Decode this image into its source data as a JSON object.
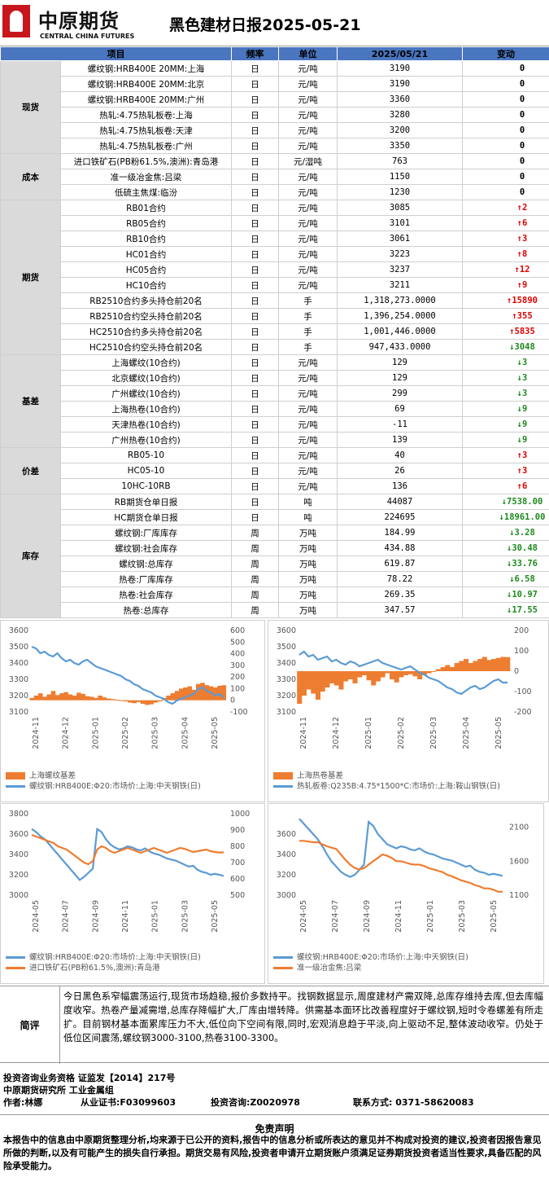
{
  "header": {
    "logo_cn": "中原期货",
    "logo_en": "CENTRAL CHINA FUTURES",
    "title": "黑色建材日报2025-05-21"
  },
  "table": {
    "headers": [
      "项目",
      "频率",
      "单位",
      "2025/05/21",
      "变动"
    ],
    "groups": [
      {
        "category": "现货",
        "rows": [
          {
            "item": "螺纹钢:HRB400E 20MM:上海",
            "freq": "日",
            "unit": "元/吨",
            "value": "3190",
            "dir": "zero",
            "change": "0"
          },
          {
            "item": "螺纹钢:HRB400E 20MM:北京",
            "freq": "日",
            "unit": "元/吨",
            "value": "3190",
            "dir": "zero",
            "change": "0"
          },
          {
            "item": "螺纹钢:HRB400E 20MM:广州",
            "freq": "日",
            "unit": "元/吨",
            "value": "3360",
            "dir": "zero",
            "change": "0"
          },
          {
            "item": "热轧:4.75热轧板卷:上海",
            "freq": "日",
            "unit": "元/吨",
            "value": "3280",
            "dir": "zero",
            "change": "0"
          },
          {
            "item": "热轧:4.75热轧板卷:天津",
            "freq": "日",
            "unit": "元/吨",
            "value": "3200",
            "dir": "zero",
            "change": "0"
          },
          {
            "item": "热轧:4.75热轧板卷:广州",
            "freq": "日",
            "unit": "元/吨",
            "value": "3350",
            "dir": "zero",
            "change": "0"
          }
        ]
      },
      {
        "category": "成本",
        "rows": [
          {
            "item": "进口铁矿石(PB粉61.5%,澳洲):青岛港",
            "freq": "日",
            "unit": "元/湿吨",
            "value": "763",
            "dir": "zero",
            "change": "0"
          },
          {
            "item": "准一级冶金焦:吕梁",
            "freq": "日",
            "unit": "元/吨",
            "value": "1150",
            "dir": "zero",
            "change": "0"
          },
          {
            "item": "低硫主焦煤:临汾",
            "freq": "日",
            "unit": "元/吨",
            "value": "1230",
            "dir": "zero",
            "change": "0"
          }
        ]
      },
      {
        "category": "期货",
        "rows": [
          {
            "item": "RB01合约",
            "freq": "日",
            "unit": "元/吨",
            "value": "3085",
            "dir": "up",
            "change": "2"
          },
          {
            "item": "RB05合约",
            "freq": "日",
            "unit": "元/吨",
            "value": "3101",
            "dir": "up",
            "change": "6"
          },
          {
            "item": "RB10合约",
            "freq": "日",
            "unit": "元/吨",
            "value": "3061",
            "dir": "up",
            "change": "3"
          },
          {
            "item": "HC01合约",
            "freq": "日",
            "unit": "元/吨",
            "value": "3223",
            "dir": "up",
            "change": "8"
          },
          {
            "item": "HC05合约",
            "freq": "日",
            "unit": "元/吨",
            "value": "3237",
            "dir": "up",
            "change": "12"
          },
          {
            "item": "HC10合约",
            "freq": "日",
            "unit": "元/吨",
            "value": "3211",
            "dir": "up",
            "change": "9"
          },
          {
            "item": "RB2510合约多头持仓前20名",
            "freq": "日",
            "unit": "手",
            "value": "1,318,273.0000",
            "dir": "up",
            "change": "15890"
          },
          {
            "item": "RB2510合约空头持仓前20名",
            "freq": "日",
            "unit": "手",
            "value": "1,396,254.0000",
            "dir": "up",
            "change": "355"
          },
          {
            "item": "HC2510合约多头持仓前20名",
            "freq": "日",
            "unit": "手",
            "value": "1,001,446.0000",
            "dir": "up",
            "change": "5835"
          },
          {
            "item": "HC2510合约空头持仓前20名",
            "freq": "日",
            "unit": "手",
            "value": "947,433.0000",
            "dir": "dn",
            "change": "3048"
          }
        ]
      },
      {
        "category": "基差",
        "rows": [
          {
            "item": "上海螺纹(10合约)",
            "freq": "日",
            "unit": "元/吨",
            "value": "129",
            "dir": "dn",
            "change": "3"
          },
          {
            "item": "北京螺纹(10合约)",
            "freq": "日",
            "unit": "元/吨",
            "value": "129",
            "dir": "dn",
            "change": "3"
          },
          {
            "item": "广州螺纹(10合约)",
            "freq": "日",
            "unit": "元/吨",
            "value": "299",
            "dir": "dn",
            "change": "3"
          },
          {
            "item": "上海热卷(10合约)",
            "freq": "日",
            "unit": "元/吨",
            "value": "69",
            "dir": "dn",
            "change": "9"
          },
          {
            "item": "天津热卷(10合约)",
            "freq": "日",
            "unit": "元/吨",
            "value": "-11",
            "dir": "dn",
            "change": "9"
          },
          {
            "item": "广州热卷(10合约)",
            "freq": "日",
            "unit": "元/吨",
            "value": "139",
            "dir": "dn",
            "change": "9"
          }
        ]
      },
      {
        "category": "价差",
        "rows": [
          {
            "item": "RB05-10",
            "freq": "日",
            "unit": "元/吨",
            "value": "40",
            "dir": "up",
            "change": "3"
          },
          {
            "item": "HC05-10",
            "freq": "日",
            "unit": "元/吨",
            "value": "26",
            "dir": "up",
            "change": "3"
          },
          {
            "item": "10HC-10RB",
            "freq": "日",
            "unit": "元/吨",
            "value": "136",
            "dir": "up",
            "change": "6"
          }
        ]
      },
      {
        "category": "库存",
        "rows": [
          {
            "item": "RB期货仓单日报",
            "freq": "日",
            "unit": "吨",
            "value": "44087",
            "dir": "dn",
            "change": "7538.00"
          },
          {
            "item": "HC期货仓单日报",
            "freq": "日",
            "unit": "吨",
            "value": "224695",
            "dir": "dn",
            "change": "18961.00"
          },
          {
            "item": "螺纹钢:厂库库存",
            "freq": "周",
            "unit": "万吨",
            "value": "184.99",
            "dir": "dn",
            "change": "3.28"
          },
          {
            "item": "螺纹钢:社会库存",
            "freq": "周",
            "unit": "万吨",
            "value": "434.88",
            "dir": "dn",
            "change": "30.48"
          },
          {
            "item": "螺纹钢:总库存",
            "freq": "周",
            "unit": "万吨",
            "value": "619.87",
            "dir": "dn",
            "change": "33.76"
          },
          {
            "item": "热卷:厂库库存",
            "freq": "周",
            "unit": "万吨",
            "value": "78.22",
            "dir": "dn",
            "change": "6.58"
          },
          {
            "item": "热卷:社会库存",
            "freq": "周",
            "unit": "万吨",
            "value": "269.35",
            "dir": "dn",
            "change": "10.97"
          },
          {
            "item": "热卷:总库存",
            "freq": "周",
            "unit": "万吨",
            "value": "347.57",
            "dir": "dn",
            "change": "17.55"
          }
        ]
      }
    ]
  },
  "colors": {
    "blue_series": "#5b9bd5",
    "orange_series": "#ed7d31",
    "header_blue": "#4a76c0",
    "up": "#e00000",
    "down": "#1d8a1d"
  },
  "chart_data": [
    {
      "type": "line",
      "x_ticks": [
        "2024-11",
        "2024-12",
        "2025-01",
        "2025-02",
        "2025-03",
        "2025-04",
        "2025-05"
      ],
      "y_left_ticks": [
        "3600",
        "3500",
        "3400",
        "3300",
        "3200",
        "3100"
      ],
      "y_right_ticks": [
        "600",
        "500",
        "400",
        "300",
        "200",
        "100",
        "0",
        "-100"
      ],
      "ylim_left": [
        3100,
        3600
      ],
      "ylim_right": [
        -100,
        600
      ],
      "series": [
        {
          "name": "上海螺纹基差",
          "kind": "area",
          "axis": "right",
          "values": [
            20,
            40,
            60,
            30,
            50,
            80,
            45,
            60,
            70,
            50,
            40,
            65,
            55,
            35,
            30,
            20,
            40,
            25,
            15,
            10,
            5,
            -5,
            -10,
            -20,
            -25,
            -15,
            -30,
            -40,
            -35,
            -20,
            -10,
            20,
            40,
            60,
            80,
            100,
            110,
            120,
            90,
            140,
            150,
            130,
            120,
            110,
            125,
            129
          ]
        },
        {
          "name": "螺纹钢:HRB400E:Φ20:市场价:上海:中天钢铁(日)",
          "kind": "line",
          "axis": "left",
          "values": [
            3500,
            3490,
            3460,
            3470,
            3450,
            3440,
            3460,
            3430,
            3410,
            3420,
            3400,
            3390,
            3410,
            3420,
            3400,
            3380,
            3370,
            3360,
            3350,
            3340,
            3330,
            3320,
            3300,
            3290,
            3270,
            3260,
            3240,
            3230,
            3220,
            3200,
            3190,
            3180,
            3160,
            3150,
            3170,
            3180,
            3190,
            3200,
            3210,
            3240,
            3250,
            3230,
            3220,
            3200,
            3210,
            3190
          ]
        }
      ]
    },
    {
      "type": "line",
      "x_ticks": [
        "2024-11",
        "2024-12",
        "2025-01",
        "2025-02",
        "2025-03",
        "2025-04",
        "2025-05"
      ],
      "y_left_ticks": [
        "3600",
        "3500",
        "3400",
        "3300",
        "3200",
        "3100"
      ],
      "y_right_ticks": [
        "200",
        "100",
        "0",
        "-100",
        "-200"
      ],
      "ylim_left": [
        3100,
        3600
      ],
      "ylim_right": [
        -200,
        200
      ],
      "series": [
        {
          "name": "上海热卷基差",
          "kind": "area",
          "axis": "right",
          "values": [
            -160,
            -120,
            -90,
            -110,
            -140,
            -100,
            -80,
            -60,
            -70,
            -90,
            -50,
            -40,
            -60,
            -30,
            -20,
            -45,
            -70,
            -50,
            -30,
            -10,
            -40,
            -55,
            -30,
            -20,
            -15,
            -25,
            -40,
            -20,
            -10,
            0,
            10,
            20,
            30,
            20,
            40,
            50,
            60,
            40,
            50,
            60,
            70,
            55,
            60,
            65,
            70,
            69
          ]
        },
        {
          "name": "热轧板卷:Q235B:4.75*1500*C:市场价:上海:鞍山钢铁(日)",
          "kind": "line",
          "axis": "left",
          "values": [
            3450,
            3470,
            3440,
            3450,
            3420,
            3430,
            3440,
            3410,
            3420,
            3400,
            3390,
            3410,
            3400,
            3380,
            3390,
            3400,
            3410,
            3420,
            3400,
            3390,
            3380,
            3370,
            3360,
            3370,
            3380,
            3360,
            3340,
            3330,
            3310,
            3300,
            3290,
            3270,
            3250,
            3240,
            3220,
            3210,
            3230,
            3250,
            3260,
            3240,
            3250,
            3270,
            3290,
            3300,
            3280,
            3280
          ]
        }
      ]
    },
    {
      "type": "line",
      "x_ticks": [
        "2024-05",
        "2024-07",
        "2024-09",
        "2024-11",
        "2025-01",
        "2025-03",
        "2025-05"
      ],
      "y_left_ticks": [
        "3800",
        "3600",
        "3400",
        "3200",
        "3000"
      ],
      "y_right_ticks": [
        "1000",
        "900",
        "800",
        "700",
        "600",
        "500"
      ],
      "ylim_left": [
        3000,
        3800
      ],
      "ylim_right": [
        500,
        1000
      ],
      "series": [
        {
          "name": "螺纹钢:HRB400E:Φ20:市场价:上海:中天钢铁(日)",
          "kind": "line",
          "axis": "left",
          "values": [
            3650,
            3620,
            3580,
            3550,
            3500,
            3450,
            3400,
            3350,
            3300,
            3250,
            3200,
            3150,
            3180,
            3220,
            3260,
            3650,
            3620,
            3550,
            3500,
            3470,
            3450,
            3460,
            3480,
            3470,
            3450,
            3440,
            3460,
            3430,
            3410,
            3400,
            3380,
            3360,
            3350,
            3340,
            3320,
            3300,
            3280,
            3290,
            3250,
            3230,
            3220,
            3200,
            3210,
            3200,
            3190
          ]
        },
        {
          "name": "进口铁矿石(PB粉61.5%,澳洲):青岛港",
          "kind": "line",
          "axis": "right",
          "values": [
            870,
            860,
            850,
            840,
            830,
            820,
            800,
            790,
            780,
            760,
            740,
            720,
            700,
            690,
            710,
            780,
            800,
            790,
            770,
            760,
            770,
            780,
            790,
            780,
            770,
            760,
            770,
            780,
            790,
            780,
            770,
            760,
            770,
            780,
            790,
            785,
            775,
            765,
            770,
            775,
            780,
            770,
            765,
            762,
            763
          ]
        }
      ]
    },
    {
      "type": "line",
      "x_ticks": [
        "2024-05",
        "2024-07",
        "2024-09",
        "2024-11",
        "2025-01",
        "2025-03",
        "2025-05"
      ],
      "y_left_ticks": [
        "3600",
        "3400",
        "3200",
        "3000"
      ],
      "y_right_ticks": [
        "2100",
        "1600",
        "1100"
      ],
      "ylim_left": [
        3000,
        3800
      ],
      "ylim_right": [
        1100,
        2300
      ],
      "series": [
        {
          "name": "螺纹钢:HRB400E:Φ20:市场价:上海:中天钢铁(日)",
          "kind": "line",
          "axis": "left",
          "values": [
            3750,
            3700,
            3650,
            3600,
            3550,
            3480,
            3400,
            3330,
            3280,
            3230,
            3200,
            3180,
            3200,
            3250,
            3300,
            3720,
            3680,
            3600,
            3550,
            3500,
            3480,
            3460,
            3480,
            3470,
            3450,
            3440,
            3460,
            3430,
            3410,
            3400,
            3380,
            3360,
            3350,
            3340,
            3320,
            3300,
            3280,
            3290,
            3250,
            3230,
            3220,
            3200,
            3210,
            3200,
            3190
          ]
        },
        {
          "name": "准一级冶金焦:吕梁",
          "kind": "line",
          "axis": "right",
          "values": [
            1900,
            1900,
            1890,
            1880,
            1880,
            1850,
            1820,
            1800,
            1780,
            1700,
            1620,
            1550,
            1500,
            1480,
            1500,
            1550,
            1600,
            1650,
            1700,
            1680,
            1650,
            1600,
            1600,
            1580,
            1560,
            1550,
            1550,
            1530,
            1500,
            1480,
            1460,
            1440,
            1400,
            1380,
            1350,
            1320,
            1300,
            1280,
            1250,
            1230,
            1200,
            1200,
            1180,
            1150,
            1150
          ]
        }
      ]
    }
  ],
  "comment": {
    "label": "简评",
    "text": "今日黑色系窄幅震荡运行,现货市场趋稳,报价多数持平。找钢数据显示,周度建材产需双降,总库存维持去库,但去库幅度收窄。热卷产量减需增,总库存降幅扩大,厂库由增转降。供需基本面环比改善程度好于螺纹钢,短时令卷螺差有所走扩。目前钢材基本面累库压力不大,低位向下空间有限,同时,宏观消息趋于平淡,向上驱动不足,整体波动收窄。仍处于低位区间震荡,螺纹钢3000-3100,热卷3100-3300。"
  },
  "footer": {
    "line1": "投资咨询业务资格  证监发【2014】217号",
    "line2": "中原期货研究所  工业金属组",
    "author": "作者:林娜",
    "cert": "从业证书:F03099603",
    "advisor": "投资咨询:Z0020978",
    "contact": "联系方式: 0371-58620083"
  },
  "disclaimer": {
    "title": "免责声明",
    "text": "本报告中的信息由中原期货整理分析,均来源于已公开的资料,报告中的信息分析或所表达的意见并不构成对投资的建议,投资者因报告意见所做的判断,以及有可能产生的损失自行承担。期货交易有风险,投资者申请开立期货账户须满足证券期货投资者适当性要求,具备匹配的风险承受能力。"
  }
}
